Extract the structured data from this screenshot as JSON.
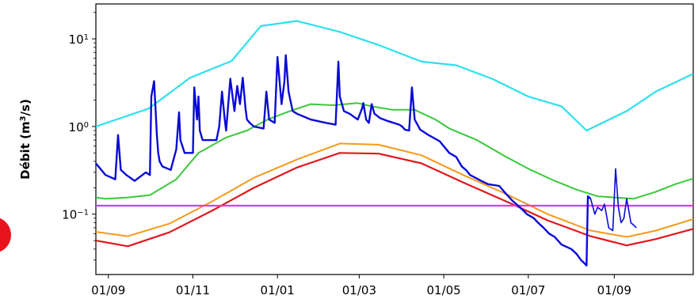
{
  "chart_data": {
    "type": "line",
    "y_scale": "log",
    "ylabel_text": "Débit (m",
    "ylabel_sup": "3",
    "ylabel_end": "/s)",
    "xlabel": "",
    "title": "",
    "ylim": [
      0.0205,
      25
    ],
    "xlim": [
      "2021-08-23",
      "2022-10-28"
    ],
    "x_ticks": [
      {
        "date": "2021-09-01",
        "label": "01/09"
      },
      {
        "date": "2021-11-01",
        "label": "01/11"
      },
      {
        "date": "2022-01-01",
        "label": "01/01"
      },
      {
        "date": "2022-03-01",
        "label": "01/03"
      },
      {
        "date": "2022-05-01",
        "label": "01/05"
      },
      {
        "date": "2022-07-01",
        "label": "01/07"
      },
      {
        "date": "2022-09-01",
        "label": "01/09"
      }
    ],
    "y_ticks": [
      {
        "value": 10,
        "base": "10",
        "exp": "1"
      },
      {
        "value": 1,
        "base": "10",
        "exp": "0"
      },
      {
        "value": 0.1,
        "base": "10",
        "exp": "−1"
      }
    ],
    "grid": false,
    "legend": "none",
    "series": [
      {
        "color": "#2ee0ee",
        "width": 2.2,
        "x": [
          "2021-08-23",
          "2021-09-30",
          "2021-10-30",
          "2021-11-29",
          "2021-12-20",
          "2022-01-15",
          "2022-02-15",
          "2022-03-15",
          "2022-04-15",
          "2022-05-10",
          "2022-06-05",
          "2022-07-01",
          "2022-07-25",
          "2022-08-12",
          "2022-09-10",
          "2022-10-01",
          "2022-10-28"
        ],
        "y": [
          1.0,
          1.6,
          3.6,
          5.6,
          14.0,
          16.0,
          12.0,
          8.5,
          5.5,
          5.0,
          3.5,
          2.2,
          1.7,
          0.9,
          1.5,
          2.5,
          4.0
        ]
      },
      {
        "color": "#3bc83b",
        "width": 2.0,
        "x": [
          "2021-08-23",
          "2021-08-30",
          "2021-09-15",
          "2021-10-01",
          "2021-10-20",
          "2021-11-05",
          "2021-11-25",
          "2021-12-10",
          "2021-12-25",
          "2022-01-10",
          "2022-01-25",
          "2022-02-10",
          "2022-02-28",
          "2022-03-10",
          "2022-03-25",
          "2022-04-10",
          "2022-04-25",
          "2022-05-05",
          "2022-05-25",
          "2022-06-15",
          "2022-07-01",
          "2022-07-20",
          "2022-08-05",
          "2022-08-20",
          "2022-09-01",
          "2022-09-15",
          "2022-10-01",
          "2022-10-15",
          "2022-10-28"
        ],
        "y": [
          0.155,
          0.15,
          0.155,
          0.165,
          0.25,
          0.5,
          0.75,
          0.9,
          1.2,
          1.5,
          1.8,
          1.75,
          1.85,
          1.7,
          1.55,
          1.55,
          1.2,
          0.95,
          0.7,
          0.45,
          0.33,
          0.24,
          0.19,
          0.16,
          0.155,
          0.15,
          0.18,
          0.22,
          0.255
        ]
      },
      {
        "color": "#f59a1c",
        "width": 2.0,
        "x": [
          "2021-08-23",
          "2021-09-15",
          "2021-10-15",
          "2021-11-15",
          "2021-12-15",
          "2022-01-15",
          "2022-02-15",
          "2022-03-15",
          "2022-04-15",
          "2022-05-15",
          "2022-06-15",
          "2022-07-15",
          "2022-08-15",
          "2022-09-10",
          "2022-10-01",
          "2022-10-28"
        ],
        "y": [
          0.063,
          0.056,
          0.078,
          0.14,
          0.26,
          0.42,
          0.64,
          0.62,
          0.47,
          0.28,
          0.17,
          0.1,
          0.065,
          0.055,
          0.065,
          0.088
        ]
      },
      {
        "color": "#e0181c",
        "width": 2.2,
        "x": [
          "2021-08-23",
          "2021-09-15",
          "2021-10-15",
          "2021-11-15",
          "2021-12-15",
          "2022-01-15",
          "2022-02-15",
          "2022-03-15",
          "2022-04-15",
          "2022-05-15",
          "2022-06-15",
          "2022-07-15",
          "2022-08-15",
          "2022-09-10",
          "2022-10-01",
          "2022-10-28"
        ],
        "y": [
          0.05,
          0.043,
          0.062,
          0.11,
          0.2,
          0.34,
          0.5,
          0.49,
          0.38,
          0.23,
          0.14,
          0.085,
          0.056,
          0.044,
          0.052,
          0.068
        ]
      },
      {
        "color": "#e737e7",
        "width": 2.2,
        "x": [
          "2021-08-23",
          "2022-10-28"
        ],
        "y": [
          0.125,
          0.125
        ]
      },
      {
        "color": "#0a0ad6",
        "width": 2.4,
        "x": [
          "2021-08-23",
          "2021-08-30",
          "2021-09-06",
          "2021-09-08",
          "2021-09-10",
          "2021-09-14",
          "2021-09-20",
          "2021-09-28",
          "2021-10-01",
          "2021-10-02",
          "2021-10-04",
          "2021-10-06",
          "2021-10-07",
          "2021-10-08",
          "2021-10-10",
          "2021-10-16",
          "2021-10-20",
          "2021-10-22",
          "2021-10-23",
          "2021-10-26",
          "2021-11-01",
          "2021-11-02",
          "2021-11-04",
          "2021-11-05",
          "2021-11-06",
          "2021-11-08",
          "2021-11-18",
          "2021-11-20",
          "2021-11-22",
          "2021-11-24",
          "2021-11-25",
          "2021-11-28",
          "2021-12-01",
          "2021-12-03",
          "2021-12-05",
          "2021-12-07",
          "2021-12-09",
          "2021-12-10",
          "2021-12-12",
          "2021-12-15",
          "2021-12-22",
          "2021-12-24",
          "2021-12-26",
          "2021-12-30",
          "2022-01-01",
          "2022-01-04",
          "2022-01-06",
          "2022-01-07",
          "2022-01-09",
          "2022-01-12",
          "2022-01-15",
          "2022-01-25",
          "2022-02-05",
          "2022-02-12",
          "2022-02-14",
          "2022-02-15",
          "2022-02-18",
          "2022-02-22",
          "2022-02-28",
          "2022-03-03",
          "2022-03-04",
          "2022-03-06",
          "2022-03-08",
          "2022-03-10",
          "2022-03-12",
          "2022-03-16",
          "2022-03-22",
          "2022-03-30",
          "2022-04-01",
          "2022-04-03",
          "2022-04-06",
          "2022-04-08",
          "2022-04-10",
          "2022-04-14",
          "2022-04-20",
          "2022-04-28",
          "2022-05-05",
          "2022-05-10",
          "2022-05-14",
          "2022-05-17",
          "2022-05-20",
          "2022-05-28",
          "2022-06-02",
          "2022-06-10",
          "2022-06-15",
          "2022-06-20",
          "2022-06-25",
          "2022-06-30",
          "2022-07-05",
          "2022-07-08",
          "2022-07-12",
          "2022-07-16",
          "2022-07-20",
          "2022-07-25",
          "2022-08-01",
          "2022-08-05",
          "2022-08-08",
          "2022-08-10",
          "2022-08-11",
          "2022-08-12",
          "2022-08-13",
          "2022-08-15"
        ],
        "y": [
          0.38,
          0.28,
          0.25,
          0.8,
          0.32,
          0.28,
          0.24,
          0.3,
          0.28,
          2.2,
          3.3,
          0.8,
          0.5,
          0.4,
          0.35,
          0.32,
          0.55,
          1.45,
          0.7,
          0.5,
          0.5,
          2.8,
          1.2,
          2.2,
          0.9,
          0.7,
          0.7,
          1.0,
          2.5,
          1.2,
          0.9,
          3.5,
          1.5,
          2.9,
          1.8,
          3.6,
          1.6,
          1.2,
          1.1,
          1.0,
          0.95,
          2.5,
          1.2,
          1.1,
          6.2,
          1.8,
          3.2,
          6.5,
          2.5,
          1.5,
          1.4,
          1.2,
          1.1,
          1.05,
          5.5,
          2.2,
          1.5,
          1.4,
          1.2,
          1.6,
          1.85,
          1.2,
          1.1,
          1.8,
          1.4,
          1.25,
          1.15,
          1.05,
          1.0,
          0.92,
          0.9,
          2.8,
          1.2,
          0.92,
          0.8,
          0.68,
          0.5,
          0.45,
          0.35,
          0.32,
          0.28,
          0.24,
          0.22,
          0.21,
          0.17,
          0.14,
          0.12,
          0.1,
          0.09,
          0.08,
          0.07,
          0.06,
          0.055,
          0.045,
          0.04,
          0.035,
          0.03,
          0.028,
          0.027,
          0.026,
          0.16,
          0.15
        ]
      },
      {
        "color": "#0a0ad6",
        "width": 1.6,
        "x": [
          "2022-08-15",
          "2022-08-18",
          "2022-08-20",
          "2022-08-23",
          "2022-08-25",
          "2022-08-28",
          "2022-08-31",
          "2022-09-02",
          "2022-09-04",
          "2022-09-06",
          "2022-09-08",
          "2022-09-10",
          "2022-09-13",
          "2022-09-15",
          "2022-09-17"
        ],
        "y": [
          0.15,
          0.1,
          0.12,
          0.11,
          0.13,
          0.07,
          0.065,
          0.33,
          0.12,
          0.08,
          0.09,
          0.15,
          0.08,
          0.075,
          0.07
        ]
      }
    ]
  }
}
